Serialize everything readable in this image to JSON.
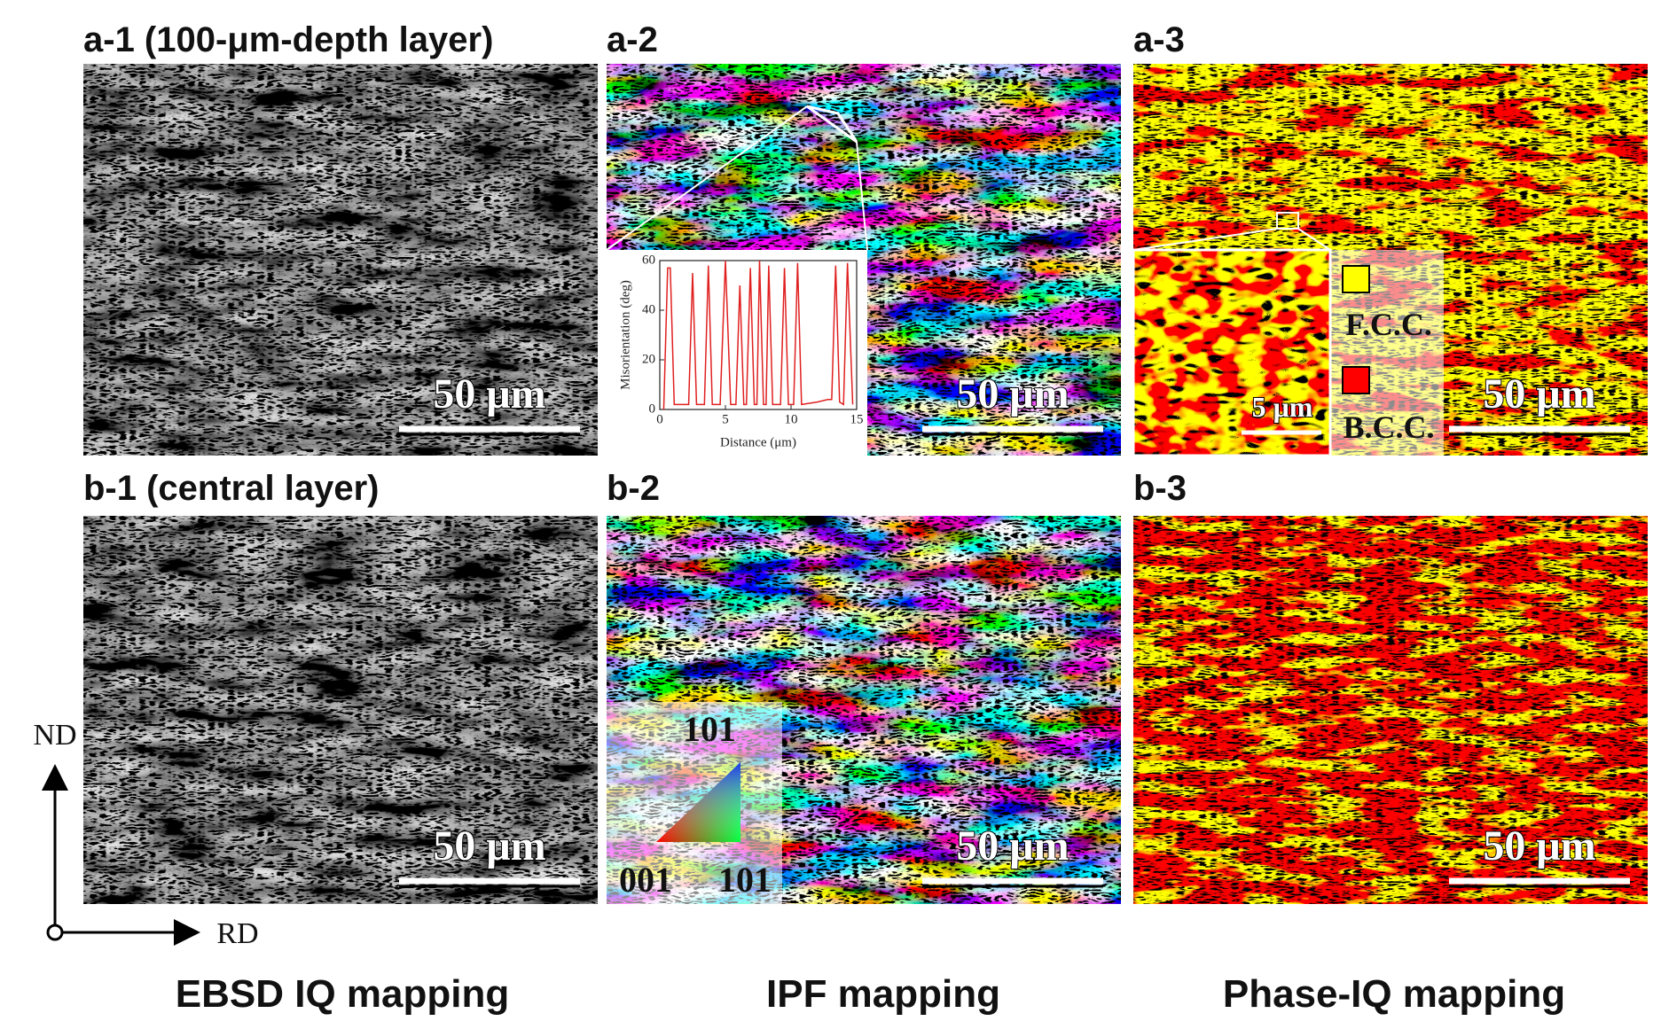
{
  "panels": [
    {
      "label": "a-1 (100-μm-depth layer)",
      "scale_bar": "50 μm"
    },
    {
      "label": "a-2",
      "scale_bar": "50 μm"
    },
    {
      "label": "a-3",
      "scale_bar": "50 μm"
    },
    {
      "label": "b-1 (central layer)",
      "scale_bar": "50 μm"
    },
    {
      "label": "b-2",
      "scale_bar": "50 μm"
    },
    {
      "label": "b-3",
      "scale_bar": "50 μm"
    }
  ],
  "misorientation_inset": {
    "x_label": "Distance (μm)",
    "y_label": "Misorientation (deg)",
    "xlim": [
      0,
      15
    ],
    "ylim": [
      0,
      60
    ],
    "xticks": [
      0,
      5,
      10,
      15
    ],
    "yticks": [
      0,
      20,
      40,
      60
    ],
    "color": "#e02020",
    "x": [
      0.3,
      0.6,
      0.8,
      1.1,
      1.4,
      2.2,
      2.5,
      2.8,
      3.4,
      3.7,
      4.0,
      4.6,
      5.0,
      5.4,
      5.8,
      6.1,
      6.4,
      6.6,
      6.9,
      7.2,
      7.4,
      7.6,
      7.9,
      8.1,
      8.3,
      8.6,
      9.2,
      9.5,
      9.8,
      10.2,
      10.5,
      10.8,
      12.0,
      12.8,
      13.1,
      13.4,
      13.7,
      14.0,
      14.3,
      14.7
    ],
    "values": [
      0,
      57,
      57,
      2,
      2,
      2,
      55,
      2,
      2,
      58,
      2,
      2,
      60,
      2,
      2,
      50,
      2,
      2,
      57,
      2,
      2,
      60,
      2,
      2,
      58,
      2,
      2,
      57,
      2,
      2,
      59,
      2,
      3,
      4,
      4,
      58,
      3,
      2,
      59,
      2
    ]
  },
  "zoom_inset": {
    "scale_bar": "5 μm"
  },
  "phase_legend": [
    {
      "name": "F.C.C.",
      "color": "#ffff00"
    },
    {
      "name": "B.C.C.",
      "color": "#ff0000"
    }
  ],
  "ipf_legend": {
    "top": "101",
    "left": "001",
    "right": "101"
  },
  "axes": {
    "vertical": "ND",
    "horizontal": "RD"
  },
  "captions": [
    "EBSD IQ mapping",
    "IPF mapping",
    "Phase-IQ mapping"
  ]
}
